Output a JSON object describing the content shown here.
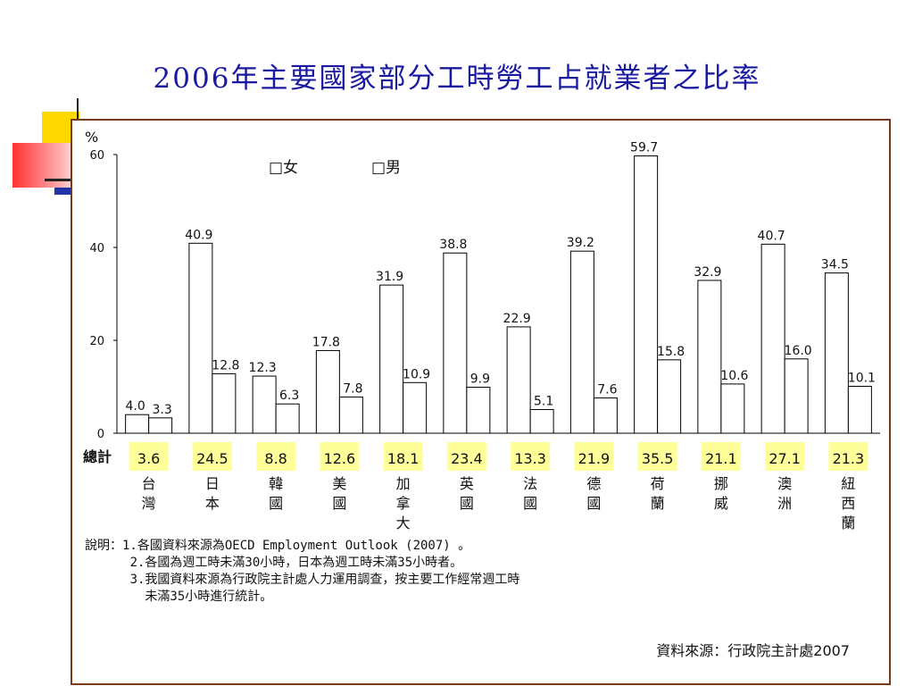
{
  "slide": {
    "title": "2006年主要國家部分工時勞工占就業者之比率"
  },
  "chart_data": {
    "type": "bar",
    "ylabel": "%",
    "ylim": [
      0,
      60
    ],
    "yticks": [
      0,
      20,
      40,
      60
    ],
    "legend": [
      "□女",
      "□男"
    ],
    "legend_position": "top-left",
    "categories": [
      "台灣",
      "日本",
      "韓國",
      "美國",
      "加拿大",
      "英國",
      "法國",
      "德國",
      "荷蘭",
      "挪威",
      "澳洲",
      "紐西蘭"
    ],
    "series": [
      {
        "name": "女",
        "values": [
          4.0,
          40.9,
          12.3,
          17.8,
          31.9,
          38.8,
          22.9,
          39.2,
          59.7,
          32.9,
          40.7,
          34.5
        ]
      },
      {
        "name": "男",
        "values": [
          3.3,
          12.8,
          6.3,
          7.8,
          10.9,
          9.9,
          5.1,
          7.6,
          15.8,
          10.6,
          16.0,
          10.1
        ]
      }
    ],
    "totals_label": "總計",
    "totals": [
      3.6,
      24.5,
      8.8,
      12.6,
      18.1,
      23.4,
      13.3,
      21.9,
      35.5,
      21.1,
      27.1,
      21.3
    ],
    "totals_highlight": "#ffff99"
  },
  "notes": [
    "說明：1.各國資料來源為OECD Employment Outlook (2007) 。",
    "      2.各國為週工時未滿30小時，日本為週工時未滿35小時者。",
    "      3.我國資料來源為行政院主計處人力運用調查，按主要工作經常週工時",
    "        未滿35小時進行統計。"
  ],
  "source": "資料來源：行政院主計處2007"
}
